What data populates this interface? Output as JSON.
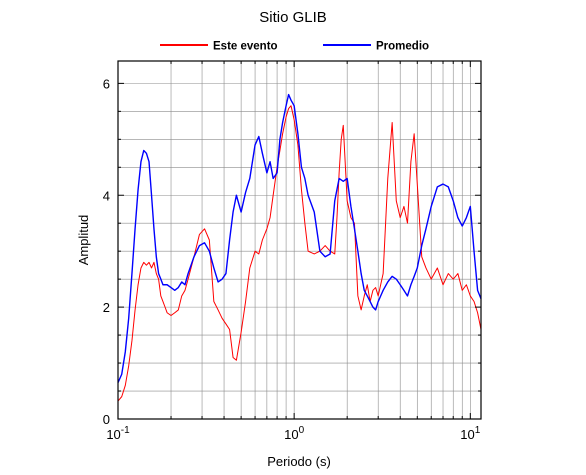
{
  "chart_data": {
    "type": "line",
    "title": "Sitio GLIB",
    "xlabel": "Periodo (s)",
    "ylabel": "Amplitud",
    "x_scale": "log",
    "xlim": [
      0.1,
      11.5
    ],
    "ylim": [
      0,
      6.4
    ],
    "grid": true,
    "legend_position": "top",
    "x_tick_labels": [
      {
        "base": "10",
        "exp": "-1",
        "value": 0.1
      },
      {
        "base": "10",
        "exp": "0",
        "value": 1
      },
      {
        "base": "10",
        "exp": "1",
        "value": 10
      }
    ],
    "y_tick_labels": [
      "0",
      "2",
      "4",
      "6"
    ],
    "series": [
      {
        "name": "Este evento",
        "color": "#ff0000",
        "x": [
          0.1,
          0.105,
          0.11,
          0.115,
          0.12,
          0.125,
          0.13,
          0.135,
          0.14,
          0.145,
          0.15,
          0.155,
          0.16,
          0.165,
          0.17,
          0.175,
          0.18,
          0.185,
          0.19,
          0.2,
          0.21,
          0.22,
          0.23,
          0.24,
          0.25,
          0.27,
          0.29,
          0.31,
          0.33,
          0.35,
          0.37,
          0.39,
          0.41,
          0.43,
          0.45,
          0.47,
          0.5,
          0.53,
          0.56,
          0.6,
          0.63,
          0.66,
          0.7,
          0.73,
          0.76,
          0.8,
          0.83,
          0.86,
          0.9,
          0.93,
          0.96,
          1.0,
          1.05,
          1.1,
          1.15,
          1.2,
          1.3,
          1.4,
          1.5,
          1.6,
          1.7,
          1.75,
          1.8,
          1.85,
          1.9,
          2.0,
          2.1,
          2.2,
          2.3,
          2.4,
          2.5,
          2.6,
          2.7,
          2.8,
          2.9,
          3.0,
          3.2,
          3.4,
          3.6,
          3.8,
          4.0,
          4.2,
          4.4,
          4.6,
          4.8,
          5.0,
          5.3,
          5.6,
          6.0,
          6.5,
          7.0,
          7.5,
          8.0,
          8.5,
          9.0,
          9.5,
          10.0,
          10.5,
          11.0,
          11.5
        ],
        "y": [
          0.32,
          0.4,
          0.6,
          0.95,
          1.4,
          1.95,
          2.4,
          2.7,
          2.8,
          2.75,
          2.8,
          2.7,
          2.8,
          2.6,
          2.5,
          2.2,
          2.1,
          2.0,
          1.9,
          1.85,
          1.9,
          1.95,
          2.2,
          2.3,
          2.5,
          2.9,
          3.3,
          3.4,
          3.2,
          2.1,
          1.95,
          1.8,
          1.7,
          1.6,
          1.1,
          1.05,
          1.55,
          2.1,
          2.7,
          3.0,
          2.95,
          3.2,
          3.4,
          3.6,
          4.0,
          4.5,
          4.8,
          5.1,
          5.4,
          5.55,
          5.6,
          5.35,
          4.9,
          4.1,
          3.5,
          3.0,
          2.95,
          3.0,
          3.1,
          3.0,
          2.95,
          3.6,
          4.4,
          5.0,
          5.25,
          3.9,
          3.6,
          3.5,
          2.2,
          1.95,
          2.2,
          2.4,
          2.1,
          2.3,
          2.35,
          2.2,
          2.6,
          4.3,
          5.3,
          3.9,
          3.6,
          3.8,
          3.5,
          4.6,
          5.1,
          4.2,
          2.9,
          2.7,
          2.5,
          2.7,
          2.4,
          2.6,
          2.5,
          2.6,
          2.3,
          2.4,
          2.2,
          2.1,
          1.9,
          1.6
        ]
      },
      {
        "name": "Promedio",
        "color": "#0000ff",
        "x": [
          0.1,
          0.105,
          0.11,
          0.115,
          0.12,
          0.125,
          0.13,
          0.135,
          0.14,
          0.145,
          0.15,
          0.155,
          0.16,
          0.165,
          0.17,
          0.175,
          0.18,
          0.19,
          0.2,
          0.21,
          0.22,
          0.23,
          0.24,
          0.25,
          0.27,
          0.29,
          0.31,
          0.33,
          0.35,
          0.37,
          0.39,
          0.41,
          0.43,
          0.45,
          0.47,
          0.5,
          0.53,
          0.56,
          0.6,
          0.63,
          0.66,
          0.7,
          0.73,
          0.76,
          0.8,
          0.83,
          0.86,
          0.9,
          0.93,
          0.96,
          1.0,
          1.05,
          1.1,
          1.15,
          1.2,
          1.3,
          1.4,
          1.5,
          1.6,
          1.7,
          1.8,
          1.9,
          2.0,
          2.1,
          2.2,
          2.3,
          2.4,
          2.5,
          2.6,
          2.7,
          2.8,
          2.9,
          3.0,
          3.2,
          3.4,
          3.6,
          3.8,
          4.0,
          4.2,
          4.4,
          4.6,
          4.8,
          5.0,
          5.3,
          5.6,
          6.0,
          6.5,
          7.0,
          7.5,
          8.0,
          8.5,
          9.0,
          9.5,
          10.0,
          10.5,
          11.0,
          11.5
        ],
        "y": [
          0.65,
          0.8,
          1.2,
          1.8,
          2.6,
          3.4,
          4.1,
          4.6,
          4.8,
          4.75,
          4.6,
          4.0,
          3.4,
          2.9,
          2.6,
          2.5,
          2.4,
          2.4,
          2.35,
          2.3,
          2.35,
          2.45,
          2.4,
          2.6,
          2.9,
          3.1,
          3.15,
          3.0,
          2.7,
          2.45,
          2.5,
          2.6,
          3.2,
          3.7,
          4.0,
          3.7,
          4.05,
          4.3,
          4.9,
          5.05,
          4.75,
          4.4,
          4.6,
          4.3,
          4.4,
          5.0,
          5.3,
          5.6,
          5.8,
          5.7,
          5.6,
          5.1,
          4.5,
          4.3,
          4.0,
          3.7,
          3.0,
          2.9,
          2.95,
          3.9,
          4.3,
          4.25,
          4.3,
          3.8,
          3.4,
          3.0,
          2.6,
          2.3,
          2.2,
          2.1,
          2.0,
          1.95,
          2.1,
          2.3,
          2.45,
          2.55,
          2.5,
          2.4,
          2.3,
          2.2,
          2.4,
          2.55,
          2.7,
          3.1,
          3.4,
          3.8,
          4.15,
          4.2,
          4.15,
          3.9,
          3.6,
          3.45,
          3.6,
          3.8,
          3.0,
          2.3,
          2.15
        ]
      }
    ]
  }
}
